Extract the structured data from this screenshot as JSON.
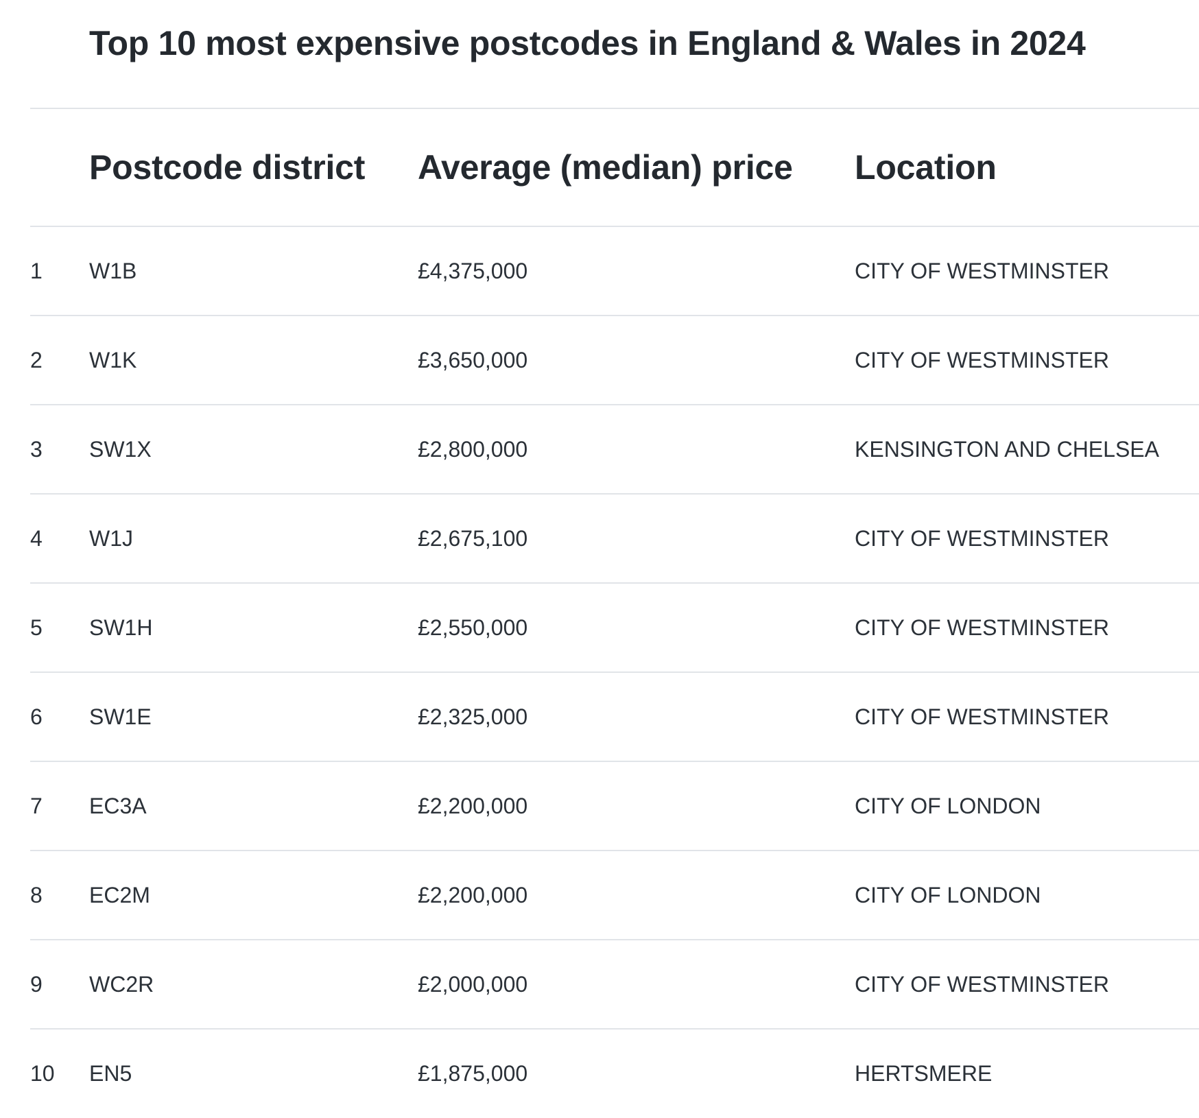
{
  "title": "Top 10 most expensive postcodes in England & Wales in 2024",
  "table": {
    "headers": {
      "rank": "",
      "postcode": "Postcode district",
      "price": "Average (median) price",
      "location": "Location"
    },
    "rows": [
      {
        "rank": "1",
        "postcode": "W1B",
        "price": "£4,375,000",
        "location": "CITY OF WESTMINSTER"
      },
      {
        "rank": "2",
        "postcode": "W1K",
        "price": "£3,650,000",
        "location": "CITY OF WESTMINSTER"
      },
      {
        "rank": "3",
        "postcode": "SW1X",
        "price": "£2,800,000",
        "location": "KENSINGTON AND CHELSEA"
      },
      {
        "rank": "4",
        "postcode": "W1J",
        "price": "£2,675,100",
        "location": "CITY OF WESTMINSTER"
      },
      {
        "rank": "5",
        "postcode": "SW1H",
        "price": "£2,550,000",
        "location": "CITY OF WESTMINSTER"
      },
      {
        "rank": "6",
        "postcode": "SW1E",
        "price": "£2,325,000",
        "location": "CITY OF WESTMINSTER"
      },
      {
        "rank": "7",
        "postcode": "EC3A",
        "price": "£2,200,000",
        "location": "CITY OF LONDON"
      },
      {
        "rank": "8",
        "postcode": "EC2M",
        "price": "£2,200,000",
        "location": "CITY OF LONDON"
      },
      {
        "rank": "9",
        "postcode": "WC2R",
        "price": "£2,000,000",
        "location": "CITY OF WESTMINSTER"
      },
      {
        "rank": "10",
        "postcode": "EN5",
        "price": "£1,875,000",
        "location": "HERTSMERE"
      }
    ]
  }
}
